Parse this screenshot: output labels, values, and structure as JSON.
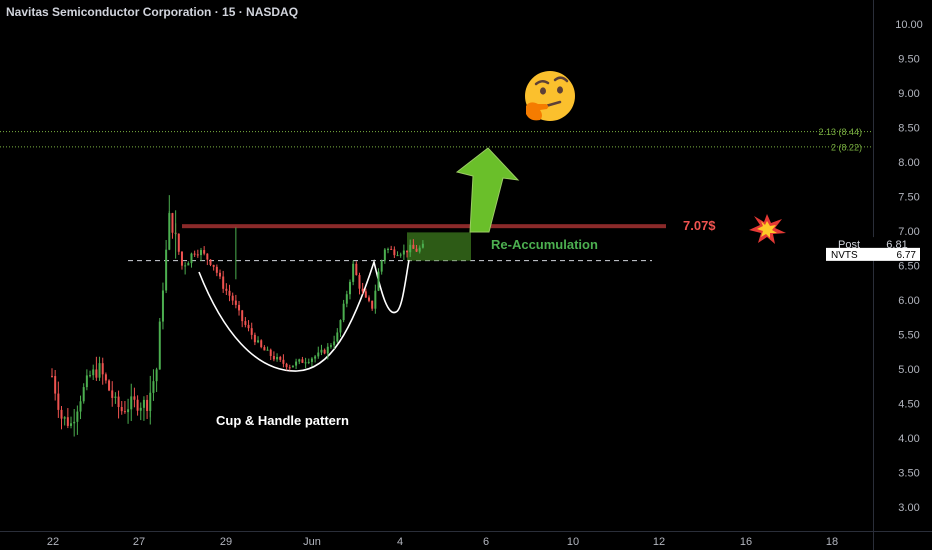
{
  "header": {
    "title": "Navitas Semiconductor Corporation · 15 · NASDAQ"
  },
  "price_axis": {
    "ticks": [
      "10.00",
      "9.50",
      "9.00",
      "8.50",
      "8.00",
      "7.50",
      "7.00",
      "6.50",
      "6.00",
      "5.50",
      "5.00",
      "4.50",
      "4.00",
      "3.50",
      "3.00"
    ]
  },
  "time_axis": {
    "ticks": [
      "22",
      "27",
      "29",
      "Jun",
      "4",
      "6",
      "10",
      "12",
      "16",
      "18"
    ]
  },
  "fib_levels": [
    {
      "label": "2.13 (8.44)",
      "price": 8.44
    },
    {
      "label": "2 (8.22)",
      "price": 8.22
    }
  ],
  "badges": {
    "post_label": "Post",
    "post_value": "6.81",
    "symbol": "NVTS",
    "last_value": "6.77"
  },
  "annotations": {
    "resistance_label": "7.07$",
    "resistance_price": 7.07,
    "reaccumulation_label": "Re-Accumulation",
    "pattern_label": "Cup & Handle pattern",
    "support_price": 6.57
  },
  "colors": {
    "background": "#000000",
    "up_candle": "#4caf50",
    "down_candle": "#ef5350",
    "resistance": "#8b2a2a",
    "resistance_text": "#ef5350",
    "fib_line": "#7cb342",
    "arrow": "#6abf2a",
    "reaccumulation_text": "#4caf50"
  },
  "icons": [
    "thinking-face-emoji-icon",
    "explosion-icon"
  ],
  "chart_data": {
    "type": "candlestick",
    "title": "Navitas Semiconductor Corporation · 15 · NASDAQ",
    "ylim": [
      2.8,
      10.3
    ],
    "close_path": [
      [
        0,
        4.9
      ],
      [
        3,
        4.3
      ],
      [
        6,
        4.2
      ],
      [
        9,
        4.6
      ],
      [
        12,
        4.9
      ],
      [
        15,
        5.0
      ],
      [
        18,
        4.7
      ],
      [
        20,
        4.5
      ],
      [
        22,
        4.4
      ],
      [
        25,
        4.5
      ],
      [
        28,
        4.5
      ],
      [
        30,
        4.5
      ],
      [
        33,
        5.0
      ],
      [
        35,
        6.2
      ],
      [
        37,
        7.2
      ],
      [
        39,
        6.9
      ],
      [
        41,
        6.5
      ],
      [
        43,
        6.6
      ],
      [
        45,
        6.7
      ],
      [
        47,
        6.7
      ],
      [
        49,
        6.6
      ],
      [
        51,
        6.5
      ],
      [
        54,
        6.2
      ],
      [
        57,
        6.0
      ],
      [
        60,
        5.7
      ],
      [
        63,
        5.5
      ],
      [
        66,
        5.3
      ],
      [
        69,
        5.2
      ],
      [
        72,
        5.1
      ],
      [
        75,
        5.05
      ],
      [
        78,
        5.1
      ],
      [
        81,
        5.15
      ],
      [
        84,
        5.2
      ],
      [
        87,
        5.3
      ],
      [
        90,
        5.5
      ],
      [
        93,
        6.1
      ],
      [
        95,
        6.5
      ],
      [
        97,
        6.2
      ],
      [
        99,
        6.0
      ],
      [
        101,
        5.9
      ],
      [
        103,
        6.4
      ],
      [
        105,
        6.75
      ],
      [
        108,
        6.7
      ],
      [
        111,
        6.7
      ],
      [
        113,
        6.75
      ],
      [
        115,
        6.72
      ],
      [
        117,
        6.77
      ]
    ]
  }
}
